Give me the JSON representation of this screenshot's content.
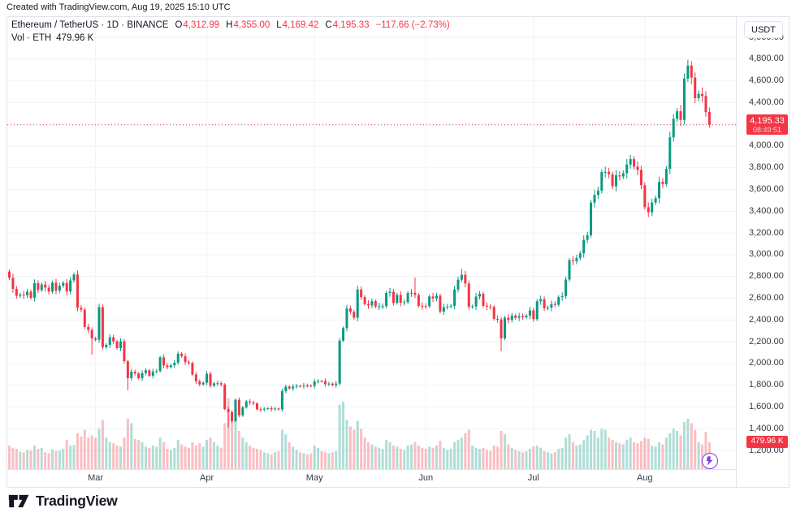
{
  "attribution": "Created with TradingView.com, Aug 19, 2025 15:10 UTC",
  "legend": {
    "title": "Ethereum / TetherUS · 1D · BINANCE",
    "o_label": "O",
    "o_value": "4,312.99",
    "h_label": "H",
    "h_value": "4,355.00",
    "l_label": "L",
    "l_value": "4,169.42",
    "c_label": "C",
    "c_value": "4,195.33",
    "change": "−117.66 (−2.73%)",
    "vol_label": "Vol · ETH",
    "vol_value": "479.96 K"
  },
  "price_axis": {
    "currency_button": "USDT",
    "ticks": [
      {
        "p": 5000,
        "t": "5,000.00"
      },
      {
        "p": 4800,
        "t": "4,800.00"
      },
      {
        "p": 4600,
        "t": "4,600.00"
      },
      {
        "p": 4400,
        "t": "4,400.00"
      },
      {
        "p": 4000,
        "t": "4,000.00"
      },
      {
        "p": 3800,
        "t": "3,800.00"
      },
      {
        "p": 3600,
        "t": "3,600.00"
      },
      {
        "p": 3400,
        "t": "3,400.00"
      },
      {
        "p": 3200,
        "t": "3,200.00"
      },
      {
        "p": 3000,
        "t": "3,000.00"
      },
      {
        "p": 2800,
        "t": "2,800.00"
      },
      {
        "p": 2600,
        "t": "2,600.00"
      },
      {
        "p": 2400,
        "t": "2,400.00"
      },
      {
        "p": 2200,
        "t": "2,200.00"
      },
      {
        "p": 2000,
        "t": "2,000.00"
      },
      {
        "p": 1800,
        "t": "1,800.00"
      },
      {
        "p": 1600,
        "t": "1,600.00"
      },
      {
        "p": 1400,
        "t": "1,400.00"
      },
      {
        "p": 1200,
        "t": "1,200.00"
      }
    ],
    "last_price_badge": {
      "price": "4,195.33",
      "countdown": "08:49:51"
    },
    "volume_badge": "479.96 K"
  },
  "footer": {
    "logo_text": "TradingView"
  },
  "colors": {
    "up": "#089981",
    "down": "#F23645",
    "vol_up": "rgba(8,153,129,0.32)",
    "vol_down": "rgba(242,54,69,0.32)",
    "grid": "#f0f3fa",
    "border": "#e0e3eb",
    "text": "#131722",
    "axis_text": "#363a45",
    "badge": "#F23645",
    "bolt_purple": "#7C3AED"
  },
  "chart_data": {
    "type": "candlestick+volume",
    "symbol_title": "Ethereum / TetherUS",
    "exchange": "BINANCE",
    "interval": "1D",
    "quote_currency": "USDT",
    "snapshot_time": "Aug 19, 2025 15:10 UTC",
    "ylim": [
      1200,
      5000
    ],
    "grid_step": 200,
    "start_date": "2025-02-05",
    "months": [
      {
        "label": "Mar",
        "day_index": 24
      },
      {
        "label": "Apr",
        "day_index": 55
      },
      {
        "label": "May",
        "day_index": 85
      },
      {
        "label": "Jun",
        "day_index": 116
      },
      {
        "label": "Jul",
        "day_index": 146
      },
      {
        "label": "Aug",
        "day_index": 177
      }
    ],
    "first_open": 2845,
    "closes": [
      2788,
      2686,
      2622,
      2632,
      2627,
      2660,
      2604,
      2738,
      2675,
      2726,
      2697,
      2661,
      2743,
      2671,
      2715,
      2741,
      2662,
      2764,
      2818,
      2512,
      2495,
      2336,
      2308,
      2230,
      2218,
      2518,
      2149,
      2171,
      2241,
      2202,
      2141,
      2203,
      2020,
      1865,
      1924,
      1908,
      1864,
      1911,
      1937,
      1887,
      1926,
      1930,
      2056,
      1982,
      1966,
      1983,
      2007,
      2090,
      2066,
      2012,
      2004,
      1898,
      1835,
      1807,
      1822,
      1905,
      1795,
      1817,
      1818,
      1806,
      1580,
      1553,
      1470,
      1666,
      1523,
      1595,
      1651,
      1641,
      1632,
      1578,
      1575,
      1583,
      1588,
      1578,
      1585,
      1577,
      1745,
      1787,
      1770,
      1786,
      1793,
      1792,
      1797,
      1795,
      1793,
      1834,
      1838,
      1837,
      1809,
      1814,
      1800,
      1815,
      2210,
      2325,
      2506,
      2475,
      2420,
      2680,
      2610,
      2547,
      2534,
      2572,
      2524,
      2525,
      2527,
      2648,
      2660,
      2557,
      2631,
      2559,
      2564,
      2647,
      2650,
      2630,
      2530,
      2528,
      2527,
      2616,
      2598,
      2623,
      2477,
      2518,
      2523,
      2530,
      2680,
      2770,
      2815,
      2735,
      2520,
      2525,
      2615,
      2640,
      2530,
      2524,
      2520,
      2410,
      2405,
      2230,
      2420,
      2400,
      2440,
      2420,
      2435,
      2425,
      2440,
      2488,
      2407,
      2572,
      2590,
      2507,
      2513,
      2545,
      2540,
      2610,
      2620,
      2772,
      2950,
      2942,
      2970,
      3012,
      3137,
      3180,
      3480,
      3550,
      3590,
      3760,
      3762,
      3740,
      3630,
      3730,
      3720,
      3750,
      3830,
      3880,
      3810,
      3780,
      3640,
      3437,
      3390,
      3480,
      3520,
      3670,
      3650,
      3790,
      4080,
      4250,
      4320,
      4240,
      4620,
      4740,
      4630,
      4440,
      4480,
      4460,
      4313,
      4195.33
    ],
    "volumes_k": [
      420,
      380,
      360,
      310,
      300,
      340,
      330,
      420,
      360,
      380,
      300,
      280,
      350,
      320,
      330,
      360,
      520,
      420,
      430,
      640,
      580,
      700,
      560,
      600,
      560,
      720,
      880,
      560,
      480,
      460,
      420,
      400,
      560,
      900,
      820,
      540,
      520,
      480,
      400,
      380,
      420,
      400,
      560,
      480,
      360,
      340,
      380,
      520,
      440,
      400,
      380,
      480,
      420,
      460,
      400,
      520,
      560,
      480,
      420,
      380,
      820,
      1260,
      980,
      900,
      680,
      560,
      480,
      420,
      380,
      360,
      340,
      300,
      280,
      260,
      300,
      320,
      700,
      620,
      480,
      400,
      340,
      300,
      280,
      260,
      280,
      420,
      380,
      320,
      300,
      280,
      300,
      320,
      1150,
      1200,
      880,
      760,
      700,
      860,
      720,
      560,
      480,
      440,
      400,
      380,
      360,
      520,
      480,
      420,
      400,
      360,
      340,
      420,
      440,
      480,
      420,
      380,
      360,
      400,
      380,
      420,
      500,
      380,
      340,
      360,
      480,
      520,
      560,
      640,
      700,
      420,
      380,
      360,
      380,
      340,
      320,
      420,
      400,
      680,
      620,
      440,
      380,
      340,
      320,
      300,
      320,
      360,
      400,
      420,
      380,
      320,
      300,
      280,
      300,
      360,
      380,
      560,
      620,
      480,
      420,
      440,
      520,
      600,
      700,
      680,
      560,
      720,
      700,
      560,
      520,
      480,
      460,
      440,
      520,
      560,
      480,
      460,
      500,
      560,
      540,
      420,
      400,
      480,
      440,
      560,
      640,
      720,
      680,
      600,
      840,
      900,
      820,
      700,
      480,
      440,
      660,
      479.96
    ],
    "vol_axis_max_k": 1260,
    "wick_overrides": {
      "23": [
        null,
        2080
      ],
      "33": [
        null,
        1754
      ],
      "61": [
        null,
        1411
      ],
      "113": [
        2790,
        null
      ],
      "126": [
        2870,
        null
      ],
      "137": [
        null,
        2111
      ],
      "189": [
        4793,
        null
      ],
      "190": [
        4780,
        null
      ]
    },
    "last_candle": {
      "o": 4312.99,
      "h": 4355.0,
      "l": 4169.42,
      "c": 4195.33
    },
    "price_line": 4195.33,
    "current_volume_k": 479.96,
    "change": -117.66,
    "change_pct": -2.73,
    "countdown": "08:49:51"
  }
}
